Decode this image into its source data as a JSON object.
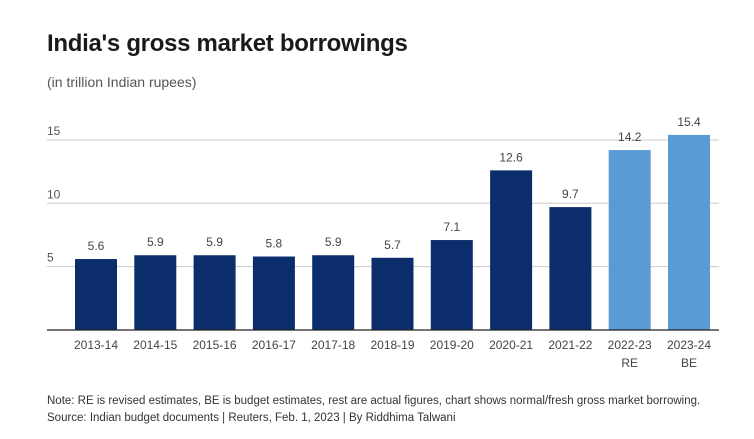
{
  "chart_data": {
    "type": "bar",
    "title": "India's gross market borrowings",
    "subtitle": "(in trillion Indian rupees)",
    "categories": [
      "2013-14",
      "2014-15",
      "2015-16",
      "2016-17",
      "2017-18",
      "2018-19",
      "2019-20",
      "2020-21",
      "2021-22",
      "2022-23",
      "2023-24"
    ],
    "category_sublabels": [
      "",
      "",
      "",
      "",
      "",
      "",
      "",
      "",
      "",
      "RE",
      "BE"
    ],
    "values": [
      5.6,
      5.9,
      5.9,
      5.8,
      5.9,
      5.7,
      7.1,
      12.6,
      9.7,
      14.2,
      15.4
    ],
    "data_labels": [
      "5.6",
      "5.9",
      "5.9",
      "5.8",
      "5.9",
      "5.7",
      "7.1",
      "12.6",
      "9.7",
      "14.2",
      "15.4"
    ],
    "bar_status": [
      "actual",
      "actual",
      "actual",
      "actual",
      "actual",
      "actual",
      "actual",
      "actual",
      "actual",
      "estimate",
      "estimate"
    ],
    "colors": {
      "actual": "#0c2d6b",
      "estimate": "#5b9bd5",
      "grid": "#cccccc",
      "axis": "#222222"
    },
    "y_ticks": [
      5,
      10,
      15
    ],
    "y_tick_labels": [
      "5",
      "10",
      "15"
    ],
    "ylim": [
      0,
      16
    ],
    "grid": true,
    "xlabel": "",
    "ylabel": ""
  },
  "footer": {
    "note": "Note: RE is revised estimates, BE is budget estimates, rest are actual figures, chart shows normal/fresh gross market borrowing.",
    "source": "Source: Indian budget documents | Reuters, Feb. 1, 2023 | By Riddhima Talwani"
  }
}
